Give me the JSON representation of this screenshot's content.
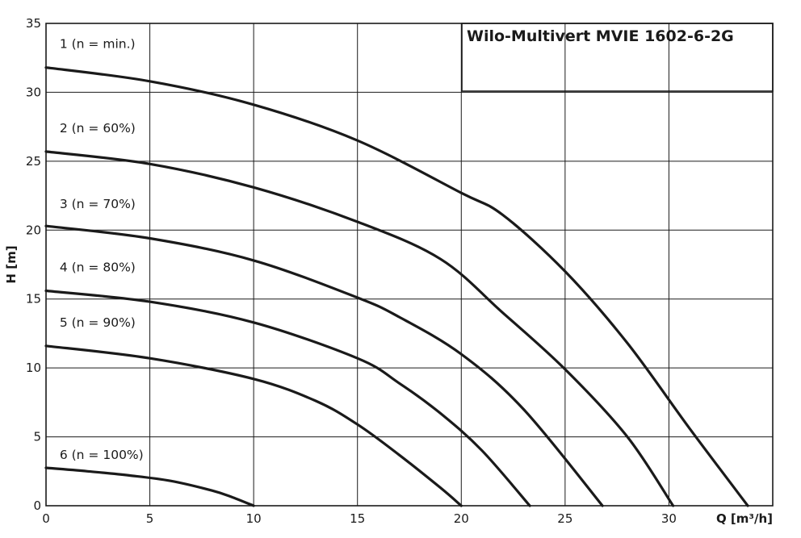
{
  "chart_data": {
    "type": "line",
    "title": "Wilo-Multivert MVIE 1602-6-2G",
    "xlabel": "Q [m³/h]",
    "ylabel": "H [m]",
    "xlim": [
      0,
      35
    ],
    "ylim": [
      0,
      35
    ],
    "xticks": [
      0,
      5,
      10,
      15,
      20,
      25,
      30
    ],
    "yticks": [
      0,
      5,
      10,
      15,
      20,
      25,
      30,
      35
    ],
    "grid": true,
    "series": [
      {
        "name": "1 (n = min.)",
        "x": [
          0,
          2,
          4,
          6,
          8,
          9,
          10
        ],
        "y": [
          2.75,
          2.5,
          2.2,
          1.8,
          1.1,
          0.6,
          0
        ]
      },
      {
        "name": "2 (n = 60%)",
        "x": [
          0,
          5,
          10,
          13,
          15,
          17,
          19,
          20
        ],
        "y": [
          11.6,
          10.7,
          9.2,
          7.6,
          5.9,
          3.7,
          1.3,
          0
        ]
      },
      {
        "name": "3 (n = 70%)",
        "x": [
          0,
          5,
          10,
          15,
          17,
          19,
          21,
          23.3
        ],
        "y": [
          15.6,
          14.8,
          13.3,
          10.7,
          8.9,
          6.7,
          4.0,
          0
        ]
      },
      {
        "name": "4 (n = 80%)",
        "x": [
          0,
          5,
          10,
          15,
          17,
          20,
          23,
          26.8
        ],
        "y": [
          20.3,
          19.4,
          17.8,
          15.1,
          13.7,
          11.0,
          7.0,
          0
        ]
      },
      {
        "name": "5 (n = 90%)",
        "x": [
          0,
          5,
          10,
          15,
          19,
          22,
          25,
          28,
          30.2
        ],
        "y": [
          25.7,
          24.8,
          23.1,
          20.6,
          17.9,
          14.0,
          9.9,
          5.0,
          0
        ]
      },
      {
        "name": "6 (n = 100%)",
        "x": [
          0,
          5,
          10,
          15,
          20,
          22,
          25,
          28,
          31,
          33.8
        ],
        "y": [
          31.8,
          30.8,
          29.1,
          26.5,
          22.7,
          21.1,
          17.0,
          11.8,
          5.6,
          0
        ]
      }
    ],
    "label_anchors": [
      {
        "x": 0.5,
        "y": 33.5
      },
      {
        "x": 0.5,
        "y": 27.4
      },
      {
        "x": 0.5,
        "y": 21.9
      },
      {
        "x": 0.5,
        "y": 17.3
      },
      {
        "x": 0.5,
        "y": 13.3
      },
      {
        "x": 0.5,
        "y": 3.7
      }
    ]
  }
}
